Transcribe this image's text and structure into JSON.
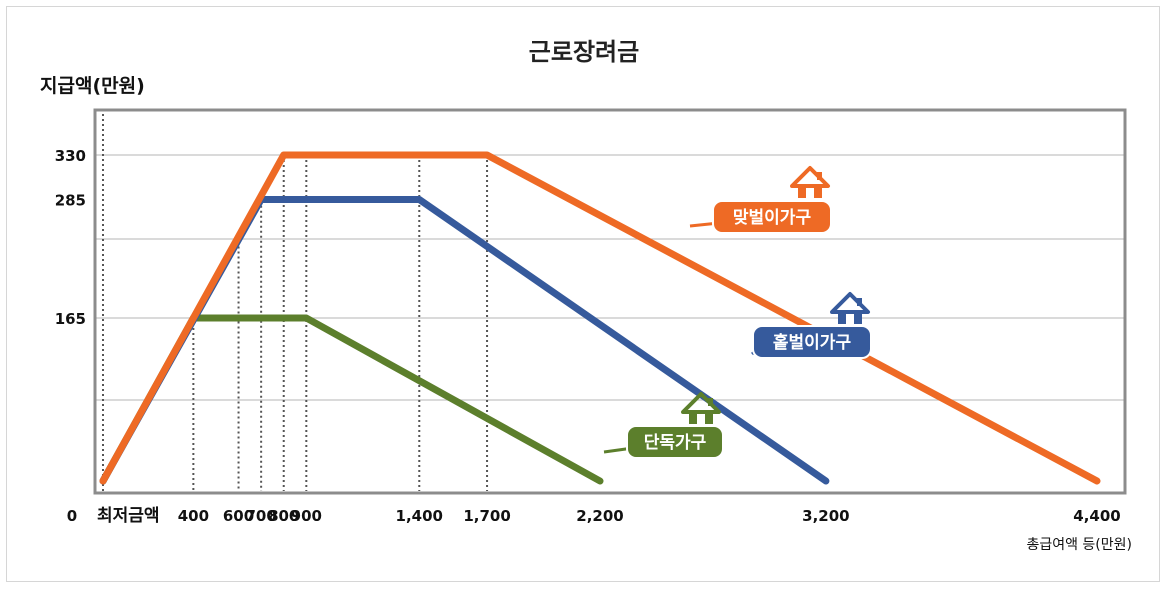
{
  "chart_data": {
    "type": "line",
    "title": "근로장려금",
    "ylabel": "지급액(만원)",
    "xlabel": "총급여액 등(만원)",
    "x_zero_label": "0",
    "x_min_label": "최저금액",
    "x_ticks": [
      {
        "value": 400,
        "label": "400"
      },
      {
        "value": 600,
        "label": "600"
      },
      {
        "value": 700,
        "label": "700"
      },
      {
        "value": 800,
        "label": "800"
      },
      {
        "value": 900,
        "label": "900"
      },
      {
        "value": 1400,
        "label": "1,400"
      },
      {
        "value": 1700,
        "label": "1,700"
      },
      {
        "value": 2200,
        "label": "2,200"
      },
      {
        "value": 3200,
        "label": "3,200"
      },
      {
        "value": 4400,
        "label": "4,400"
      }
    ],
    "y_ticks": [
      {
        "value": 165,
        "label": "165"
      },
      {
        "value": 285,
        "label": "285"
      },
      {
        "value": 330,
        "label": "330"
      }
    ],
    "y_gridlines": [
      330,
      245,
      165,
      82
    ],
    "ylim": [
      0,
      380
    ],
    "grid": true,
    "series": [
      {
        "name": "맞벌이가구",
        "color": "#ee6a25",
        "points": [
          [
            0,
            0
          ],
          [
            800,
            330
          ],
          [
            1700,
            330
          ],
          [
            4400,
            0
          ]
        ]
      },
      {
        "name": "홑벌이가구",
        "color": "#365a9c",
        "points": [
          [
            0,
            0
          ],
          [
            700,
            285
          ],
          [
            1400,
            285
          ],
          [
            3200,
            0
          ]
        ]
      },
      {
        "name": "단독가구",
        "color": "#5c7f2c",
        "points": [
          [
            0,
            0
          ],
          [
            400,
            165
          ],
          [
            900,
            165
          ],
          [
            2200,
            0
          ]
        ]
      }
    ],
    "x_guides": [
      400,
      600,
      700,
      800,
      900,
      1400,
      1700
    ]
  }
}
